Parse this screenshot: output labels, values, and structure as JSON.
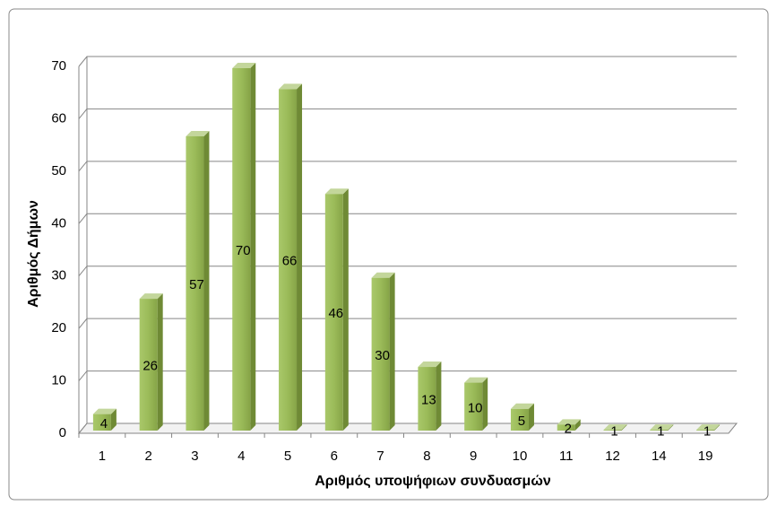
{
  "chart_data": {
    "type": "bar3d",
    "x_label": "Αριθμός υποψήφιων συνδυασμών",
    "y_label": "Αριθμός Δήμων",
    "categories": [
      "1",
      "2",
      "3",
      "4",
      "5",
      "6",
      "7",
      "8",
      "9",
      "10",
      "11",
      "12",
      "14",
      "19"
    ],
    "values": [
      4,
      26,
      57,
      70,
      66,
      46,
      30,
      13,
      10,
      5,
      2,
      1,
      1,
      1
    ],
    "color": "#9bbb59",
    "ylim": [
      0,
      70
    ],
    "yticks": [
      0,
      10,
      20,
      30,
      40,
      50,
      60,
      70
    ],
    "grid": true
  }
}
